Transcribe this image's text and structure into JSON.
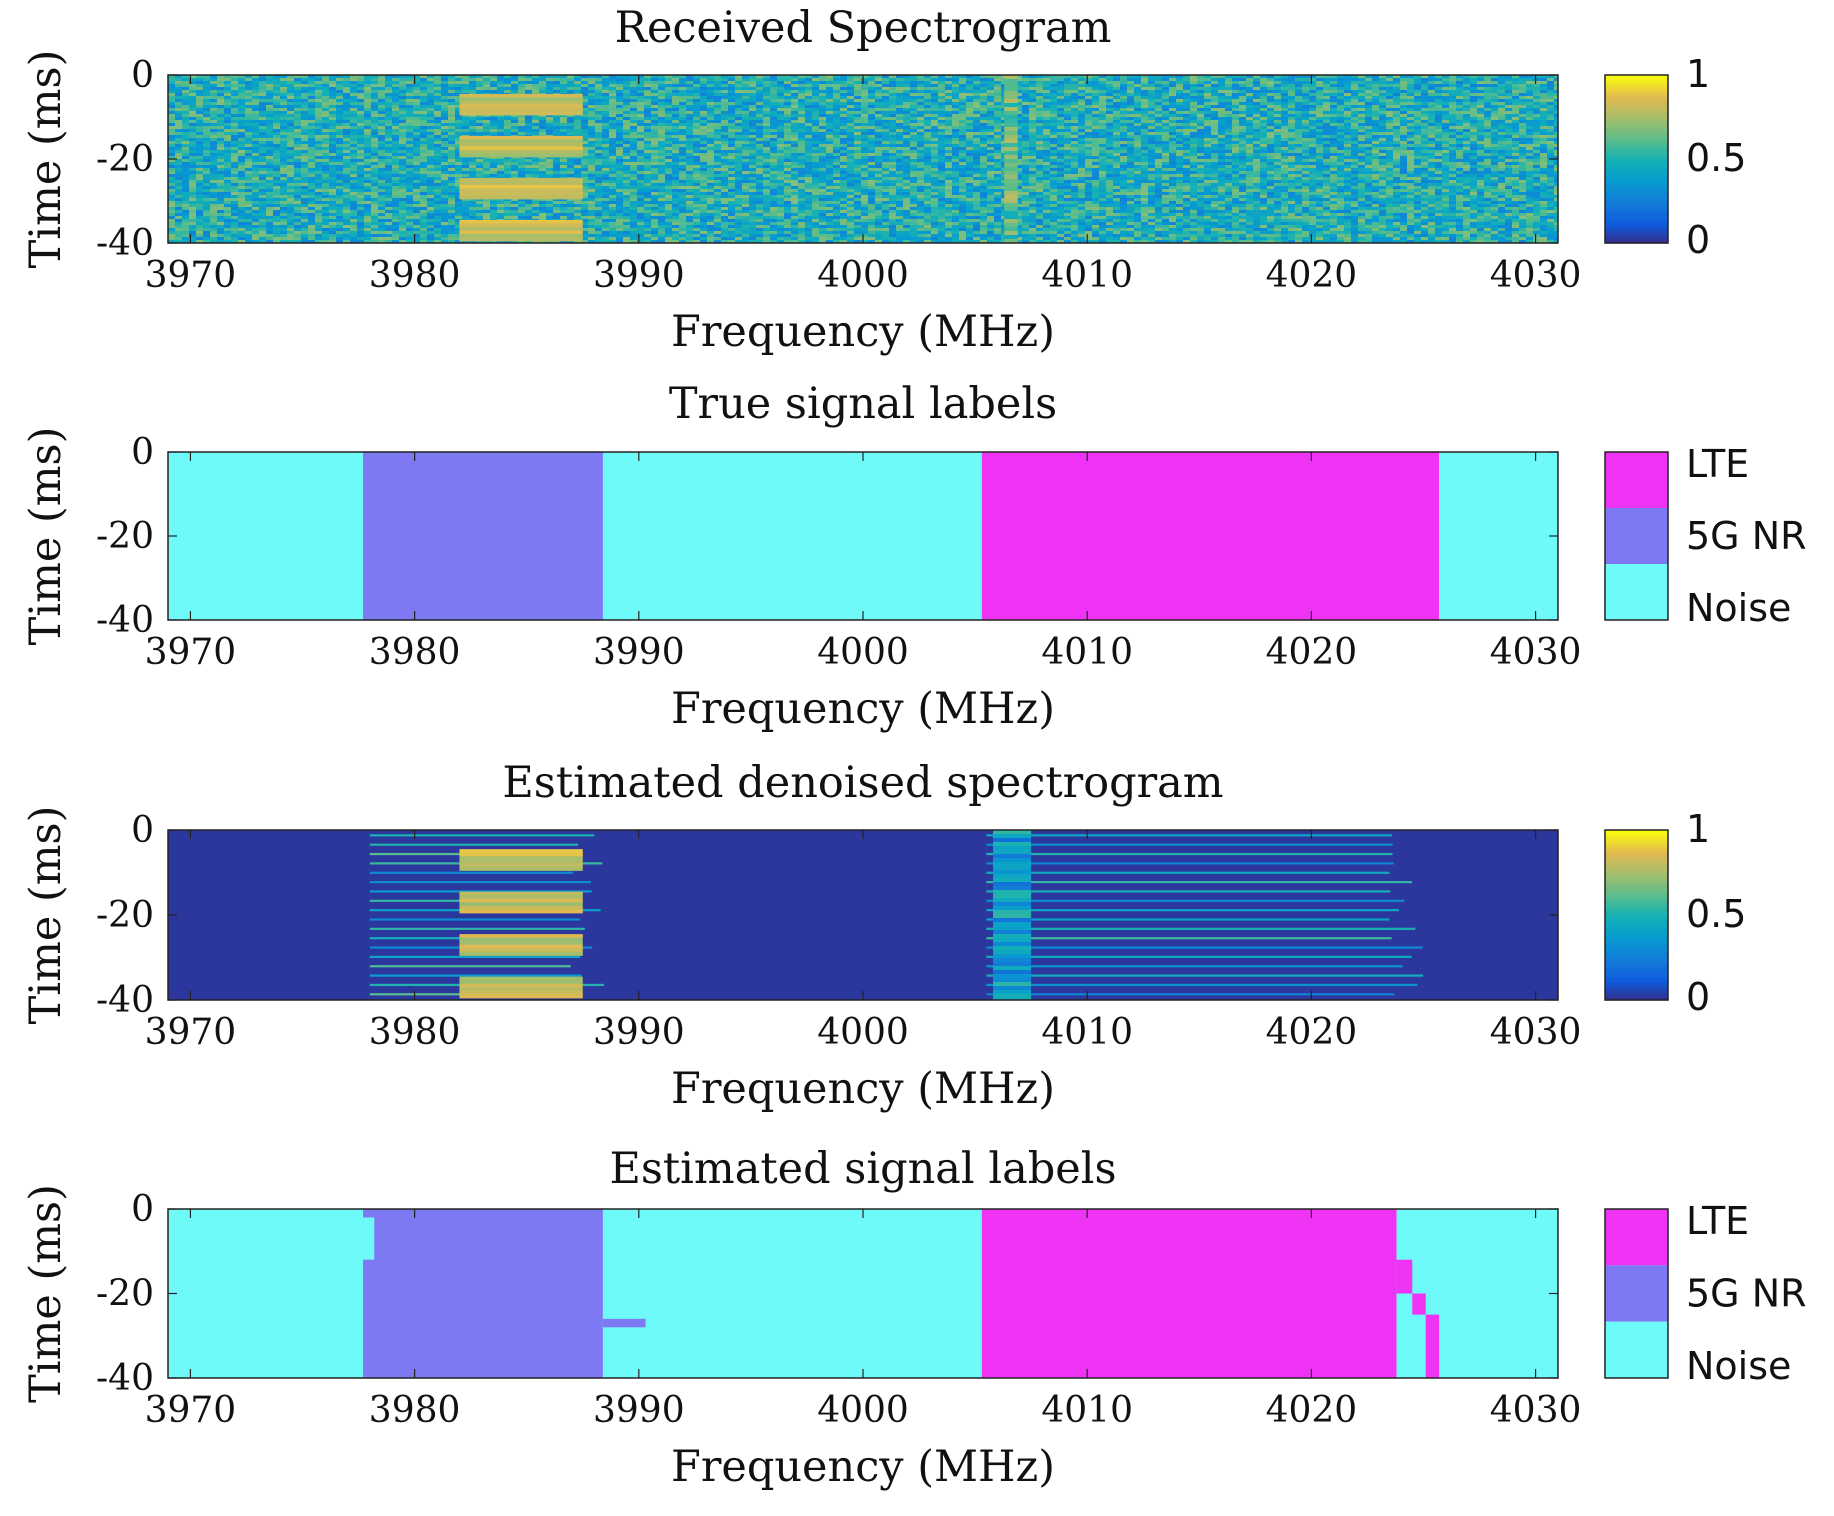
{
  "chart_data": [
    {
      "type": "heatmap",
      "title": "Received Spectrogram",
      "xlabel": "Frequency (MHz)",
      "ylabel": "Time (ms)",
      "xlim": [
        3969,
        4031
      ],
      "ylim": [
        -40,
        0
      ],
      "xticks": [
        "3970",
        "3980",
        "3990",
        "4000",
        "4010",
        "4020",
        "4030"
      ],
      "yticks": [
        "0",
        "-20",
        "-40"
      ],
      "colorbar": {
        "kind": "continuous",
        "colormap": "parula",
        "range": [
          0,
          1
        ],
        "ticks": [
          "1",
          "0.5",
          "0"
        ]
      },
      "background_level": 0.5,
      "features": [
        {
          "kind": "bursts",
          "freq": [
            3982,
            3987.5
          ],
          "time_centers": [
            -7,
            -17,
            -27,
            -37
          ],
          "level": 0.9
        },
        {
          "kind": "stripe",
          "freq": [
            4006.3,
            4006.9
          ],
          "level": 0.8
        }
      ]
    },
    {
      "type": "heatmap",
      "title": "True signal labels",
      "xlabel": "Frequency (MHz)",
      "ylabel": "Time (ms)",
      "xlim": [
        3969,
        4031
      ],
      "ylim": [
        -40,
        0
      ],
      "xticks": [
        "3970",
        "3980",
        "3990",
        "4000",
        "4010",
        "4020",
        "4030"
      ],
      "yticks": [
        "0",
        "-20",
        "-40"
      ],
      "colorbar": {
        "kind": "categorical",
        "ticks": [
          "LTE",
          "5G NR",
          "Noise"
        ]
      },
      "classes": [
        {
          "name": "LTE",
          "color": "#ee33f4"
        },
        {
          "name": "5G NR",
          "color": "#7d79f3"
        },
        {
          "name": "Noise",
          "color": "#6ffafa"
        }
      ],
      "segments": [
        {
          "class": "Noise",
          "freq": [
            3969,
            3977.7
          ]
        },
        {
          "class": "5G NR",
          "freq": [
            3977.7,
            3988.4
          ]
        },
        {
          "class": "Noise",
          "freq": [
            3988.4,
            4005.3
          ]
        },
        {
          "class": "LTE",
          "freq": [
            4005.3,
            4025.7
          ]
        },
        {
          "class": "Noise",
          "freq": [
            4025.7,
            4031
          ]
        }
      ]
    },
    {
      "type": "heatmap",
      "title": "Estimated denoised spectrogram",
      "xlabel": "Frequency (MHz)",
      "ylabel": "Time (ms)",
      "xlim": [
        3969,
        4031
      ],
      "ylim": [
        -40,
        0
      ],
      "xticks": [
        "3970",
        "3980",
        "3990",
        "4000",
        "4010",
        "4020",
        "4030"
      ],
      "yticks": [
        "0",
        "-20",
        "-40"
      ],
      "colorbar": {
        "kind": "continuous",
        "colormap": "parula",
        "range": [
          0,
          1
        ],
        "ticks": [
          "1",
          "0.5",
          "0"
        ]
      },
      "background_level": 0.03,
      "features": [
        {
          "kind": "bursts",
          "freq": [
            3982,
            3987.5
          ],
          "time_centers": [
            -7,
            -17,
            -27,
            -37
          ],
          "level": 0.9
        },
        {
          "kind": "lines",
          "freq": [
            3978,
            3988.5
          ],
          "level": 0.5
        },
        {
          "kind": "lines",
          "freq": [
            4005.5,
            4025
          ],
          "level": 0.45
        },
        {
          "kind": "stripe",
          "freq": [
            4005.8,
            4007.5
          ],
          "level": 0.55
        }
      ]
    },
    {
      "type": "heatmap",
      "title": "Estimated signal labels",
      "xlabel": "Frequency (MHz)",
      "ylabel": "Time (ms)",
      "xlim": [
        3969,
        4031
      ],
      "ylim": [
        -40,
        0
      ],
      "xticks": [
        "3970",
        "3980",
        "3990",
        "4000",
        "4010",
        "4020",
        "4030"
      ],
      "yticks": [
        "0",
        "-20",
        "-40"
      ],
      "colorbar": {
        "kind": "categorical",
        "ticks": [
          "LTE",
          "5G NR",
          "Noise"
        ]
      },
      "classes": [
        {
          "name": "LTE",
          "color": "#ee33f4"
        },
        {
          "name": "5G NR",
          "color": "#7d79f3"
        },
        {
          "name": "Noise",
          "color": "#6ffafa"
        }
      ],
      "segments": [
        {
          "class": "Noise",
          "freq": [
            3969,
            3977.7
          ]
        },
        {
          "class": "5G NR",
          "freq": [
            3977.7,
            3988.4
          ]
        },
        {
          "class": "Noise",
          "freq": [
            3988.4,
            4005.3
          ]
        },
        {
          "class": "LTE",
          "freq": [
            4005.3,
            4023.8
          ]
        },
        {
          "class": "Noise",
          "freq": [
            4023.8,
            4031
          ]
        }
      ],
      "irregular_edges": [
        {
          "class": "LTE",
          "time": [
            -12,
            -20
          ],
          "freq": [
            4023.8,
            4024.5
          ]
        },
        {
          "class": "LTE",
          "time": [
            -20,
            -25
          ],
          "freq": [
            4024.5,
            4025.1
          ]
        },
        {
          "class": "LTE",
          "time": [
            -25,
            -40
          ],
          "freq": [
            4025.1,
            4025.7
          ]
        },
        {
          "class": "Noise",
          "time": [
            -2,
            -12
          ],
          "freq": [
            3977.7,
            3978.2
          ]
        },
        {
          "class": "5G NR",
          "time": [
            -26,
            -28
          ],
          "freq": [
            3988.4,
            3990.3
          ]
        }
      ]
    }
  ]
}
